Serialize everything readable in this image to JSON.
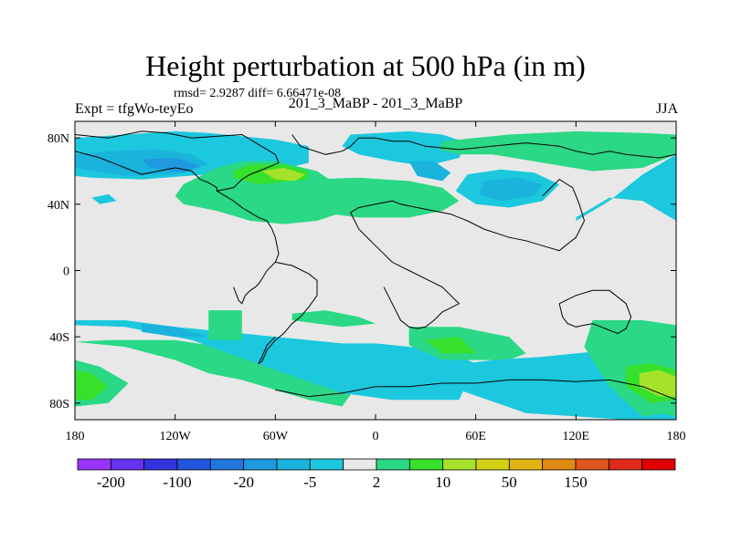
{
  "plot": {
    "title": "Height perturbation at 500 hPa (in m)",
    "stats": "rmsd= 2.9287 diff= 6.66471e-08",
    "left_string": "Expt = tfgWo-teyEo",
    "center_string": "201_3_MaBP - 201_3_MaBP",
    "right_string": "JJA"
  },
  "colors": {
    "background": "#e8e8e8",
    "coastline": "#000000",
    "levels_palette": [
      "#9933ff",
      "#6633ee",
      "#3333dd",
      "#2255dd",
      "#2277dd",
      "#1f99e0",
      "#1ab3dc",
      "#1cc8de",
      "#e8e8e8",
      "#2ad885",
      "#37e02a",
      "#a6e22a",
      "#d4d214",
      "#e0b414",
      "#e08a14",
      "#e0561c",
      "#e02a1a",
      "#e00000"
    ]
  },
  "chart_data": {
    "type": "filled-contour map",
    "title": "Height perturbation at 500 hPa (in m)",
    "xlabel": "",
    "ylabel": "",
    "xlim": [
      -180,
      180
    ],
    "ylim": [
      -90,
      90
    ],
    "x_ticks": [
      {
        "value": -180,
        "label": "180"
      },
      {
        "value": -120,
        "label": "120W"
      },
      {
        "value": -60,
        "label": "60W"
      },
      {
        "value": 0,
        "label": "0"
      },
      {
        "value": 60,
        "label": "60E"
      },
      {
        "value": 120,
        "label": "120E"
      },
      {
        "value": 180,
        "label": "180"
      }
    ],
    "y_ticks": [
      {
        "value": 80,
        "label": "80N"
      },
      {
        "value": 40,
        "label": "40N"
      },
      {
        "value": 0,
        "label": "0"
      },
      {
        "value": -40,
        "label": "40S"
      },
      {
        "value": -80,
        "label": "80S"
      }
    ],
    "colorbar": {
      "labels": [
        "-200",
        "-100",
        "-20",
        "-5",
        "2",
        "10",
        "50",
        "150"
      ],
      "label_boxes": [
        1,
        3,
        5,
        7,
        9,
        11,
        13,
        15
      ]
    },
    "regions": [
      {
        "level": 7,
        "lon": [
          -180,
          -150,
          -120,
          -100,
          -60,
          -40,
          -40,
          -60,
          -100,
          -140,
          -170,
          -180
        ],
        "lat": [
          80,
          82,
          84,
          83,
          79,
          75,
          65,
          60,
          58,
          55,
          56,
          57
        ]
      },
      {
        "level": 6,
        "lon": [
          -180,
          -160,
          -130,
          -110,
          -100,
          -120,
          -150,
          -170,
          -180
        ],
        "lat": [
          70,
          72,
          73,
          70,
          64,
          58,
          57,
          60,
          62
        ]
      },
      {
        "level": 5,
        "lon": [
          -140,
          -120,
          -105,
          -115,
          -135
        ],
        "lat": [
          67,
          68,
          63,
          59,
          62
        ]
      },
      {
        "level": 7,
        "lon": [
          -170,
          -160,
          -155,
          -165
        ],
        "lat": [
          44,
          46,
          42,
          40
        ]
      },
      {
        "level": 9,
        "lon": [
          -115,
          -95,
          -80,
          -60,
          -35,
          -15,
          -20,
          -35,
          -55,
          -75,
          -95,
          -115,
          -120
        ],
        "lat": [
          52,
          62,
          66,
          66,
          60,
          46,
          35,
          30,
          28,
          30,
          36,
          40,
          45
        ]
      },
      {
        "level": 10,
        "lon": [
          -85,
          -75,
          -55,
          -40,
          -42,
          -55,
          -70,
          -85
        ],
        "lat": [
          60,
          64,
          64,
          60,
          53,
          49,
          52,
          56
        ]
      },
      {
        "level": 11,
        "lon": [
          -68,
          -55,
          -42,
          -48,
          -60
        ],
        "lat": [
          60,
          62,
          58,
          54,
          55
        ]
      },
      {
        "level": 9,
        "lon": [
          -100,
          -70,
          -40,
          -10,
          20,
          40,
          50,
          40,
          20,
          -10,
          -40,
          -70,
          -100
        ],
        "lat": [
          48,
          52,
          55,
          56,
          54,
          50,
          42,
          36,
          32,
          32,
          36,
          42,
          44
        ]
      },
      {
        "level": 7,
        "lon": [
          -15,
          20,
          40,
          55,
          50,
          30,
          10,
          -10,
          -20
        ],
        "lat": [
          82,
          84,
          82,
          77,
          68,
          63,
          66,
          70,
          75
        ]
      },
      {
        "level": 6,
        "lon": [
          20,
          35,
          45,
          40,
          25
        ],
        "lat": [
          66,
          66,
          59,
          54,
          57
        ]
      },
      {
        "level": 9,
        "lon": [
          40,
          80,
          120,
          160,
          180,
          180,
          160,
          130,
          100,
          70,
          50,
          38
        ],
        "lat": [
          78,
          82,
          84,
          83,
          82,
          70,
          62,
          60,
          65,
          70,
          70,
          73
        ]
      },
      {
        "level": 7,
        "lon": [
          55,
          75,
          95,
          110,
          100,
          80,
          60,
          48
        ],
        "lat": [
          58,
          61,
          59,
          52,
          42,
          38,
          40,
          48
        ]
      },
      {
        "level": 6,
        "lon": [
          65,
          85,
          100,
          95,
          75,
          62
        ],
        "lat": [
          54,
          56,
          52,
          45,
          42,
          46
        ]
      },
      {
        "level": 7,
        "lon": [
          120,
          140,
          160,
          180,
          180,
          160,
          140,
          120
        ],
        "lat": [
          30,
          42,
          58,
          70,
          30,
          42,
          44,
          32
        ]
      },
      {
        "level": 9,
        "lon": [
          -180,
          -150,
          -120,
          -100,
          -80,
          -60,
          -40,
          -20,
          -10,
          -40,
          -80,
          -120,
          -160,
          -180
        ],
        "lat": [
          -43,
          -46,
          -54,
          -62,
          -66,
          -72,
          -78,
          -82,
          -68,
          -60,
          -48,
          -42,
          -42,
          -43
        ]
      },
      {
        "level": 7,
        "lon": [
          -180,
          -150,
          -120,
          -80,
          -40,
          -20,
          0,
          40,
          60,
          50,
          10,
          -20,
          -60,
          -110,
          -150,
          -180
        ],
        "lat": [
          -30,
          -30,
          -34,
          -38,
          -42,
          -44,
          -44,
          -48,
          -56,
          -78,
          -78,
          -74,
          -60,
          -42,
          -34,
          -33
        ]
      },
      {
        "level": 6,
        "lon": [
          -140,
          -120,
          -100,
          -120,
          -140
        ],
        "lat": [
          -32,
          -34,
          -40,
          -40,
          -37
        ]
      },
      {
        "level": 9,
        "lon": [
          -180,
          -165,
          -148,
          -160,
          -180
        ],
        "lat": [
          -54,
          -58,
          -68,
          -80,
          -82
        ]
      },
      {
        "level": 10,
        "lon": [
          -180,
          -170,
          -160,
          -170,
          -180
        ],
        "lat": [
          -60,
          -62,
          -70,
          -78,
          -78
        ]
      },
      {
        "level": 9,
        "lon": [
          -100,
          -80,
          -80,
          -100
        ],
        "lat": [
          -24,
          -24,
          -42,
          -42
        ]
      },
      {
        "level": 9,
        "lon": [
          -50,
          -30,
          -10,
          0,
          -20,
          -50
        ],
        "lat": [
          -26,
          -24,
          -28,
          -32,
          -34,
          -30
        ]
      },
      {
        "level": 9,
        "lon": [
          20,
          50,
          80,
          90,
          80,
          40,
          20
        ],
        "lat": [
          -34,
          -34,
          -40,
          -50,
          -54,
          -54,
          -45
        ]
      },
      {
        "level": 10,
        "lon": [
          30,
          50,
          60,
          40
        ],
        "lat": [
          -42,
          -40,
          -50,
          -50
        ]
      },
      {
        "level": 7,
        "lon": [
          40,
          70,
          100,
          140,
          170,
          180,
          180,
          150,
          120,
          90,
          50
        ],
        "lat": [
          -58,
          -54,
          -52,
          -48,
          -48,
          -50,
          -90,
          -90,
          -88,
          -86,
          -72
        ]
      },
      {
        "level": 9,
        "lon": [
          130,
          160,
          180,
          180,
          160,
          140,
          125
        ],
        "lat": [
          -30,
          -30,
          -33,
          -88,
          -84,
          -70,
          -46
        ]
      },
      {
        "level": 9,
        "lon": [
          140,
          160,
          180,
          180,
          160,
          145
        ],
        "lat": [
          -55,
          -50,
          -54,
          -85,
          -88,
          -75
        ]
      },
      {
        "level": 10,
        "lon": [
          150,
          165,
          180,
          180,
          165,
          150
        ],
        "lat": [
          -58,
          -56,
          -60,
          -78,
          -80,
          -70
        ]
      },
      {
        "level": 11,
        "lon": [
          158,
          170,
          180,
          180,
          170,
          158
        ],
        "lat": [
          -62,
          -60,
          -64,
          -76,
          -76,
          -70
        ]
      }
    ],
    "coastlines": [
      {
        "lon": [
          -180,
          -160,
          -140,
          -125,
          -110,
          -80,
          -70,
          -60,
          -58,
          -65,
          -70,
          -75,
          -80,
          -85,
          -95,
          -95,
          -100,
          -105,
          -110,
          -120,
          -130,
          -140,
          -150,
          -165,
          -180
        ],
        "lat": [
          82,
          80,
          84,
          83,
          80,
          82,
          76,
          70,
          65,
          62,
          60,
          58,
          55,
          50,
          48,
          50,
          53,
          55,
          60,
          62,
          60,
          58,
          62,
          68,
          72
        ]
      },
      {
        "lon": [
          -95,
          -90,
          -85,
          -80,
          -75,
          -70,
          -65,
          -62,
          -60,
          -58,
          -60,
          -65,
          -68,
          -70,
          -72,
          -75,
          -78,
          -80,
          -82,
          -85
        ],
        "lat": [
          48,
          45,
          42,
          38,
          35,
          32,
          30,
          25,
          20,
          10,
          5,
          0,
          -5,
          -8,
          -10,
          -12,
          -15,
          -20,
          -18,
          -10
        ]
      },
      {
        "lon": [
          -60,
          -50,
          -40,
          -35,
          -35,
          -40,
          -45,
          -50,
          -55,
          -60,
          -65,
          -68,
          -70,
          -68,
          -65,
          -60
        ],
        "lat": [
          5,
          3,
          -2,
          -6,
          -15,
          -22,
          -28,
          -32,
          -38,
          -42,
          -48,
          -55,
          -56,
          -52,
          -45,
          -40
        ]
      },
      {
        "lon": [
          -50,
          -45,
          -30,
          -20,
          -15,
          -10,
          0,
          10,
          20,
          30,
          40,
          50,
          60,
          70,
          80,
          90,
          100,
          110,
          120,
          130,
          140,
          150,
          160,
          170,
          180
        ],
        "lat": [
          82,
          75,
          70,
          72,
          75,
          80,
          80,
          78,
          78,
          75,
          74,
          73,
          74,
          75,
          76,
          77,
          76,
          75,
          72,
          70,
          72,
          70,
          69,
          68,
          70
        ]
      },
      {
        "lon": [
          -15,
          -10,
          0,
          10,
          15,
          25,
          35,
          45,
          55,
          65,
          80,
          90,
          100,
          110,
          120,
          125,
          122,
          118,
          110,
          105,
          100
        ],
        "lat": [
          35,
          38,
          40,
          42,
          40,
          38,
          36,
          34,
          30,
          25,
          20,
          18,
          15,
          12,
          20,
          30,
          40,
          50,
          55,
          50,
          45
        ]
      },
      {
        "lon": [
          -15,
          -10,
          0,
          10,
          20,
          30,
          40,
          45,
          50,
          40,
          35,
          30,
          25,
          20,
          15,
          10,
          5
        ],
        "lat": [
          35,
          25,
          15,
          5,
          0,
          -5,
          -10,
          -15,
          -20,
          -25,
          -30,
          -34,
          -35,
          -34,
          -30,
          -20,
          -10
        ]
      },
      {
        "lon": [
          110,
          120,
          130,
          140,
          150,
          153,
          150,
          145,
          140,
          135,
          130,
          125,
          120,
          115,
          112,
          110
        ],
        "lat": [
          -20,
          -15,
          -12,
          -12,
          -20,
          -28,
          -35,
          -38,
          -36,
          -34,
          -32,
          -33,
          -34,
          -32,
          -28,
          -20
        ]
      },
      {
        "lon": [
          -60,
          -40,
          -20,
          0,
          20,
          40,
          60,
          80,
          100,
          120,
          140,
          160,
          180
        ],
        "lat": [
          -72,
          -76,
          -74,
          -70,
          -70,
          -68,
          -68,
          -66,
          -66,
          -67,
          -66,
          -70,
          -78
        ]
      }
    ]
  }
}
